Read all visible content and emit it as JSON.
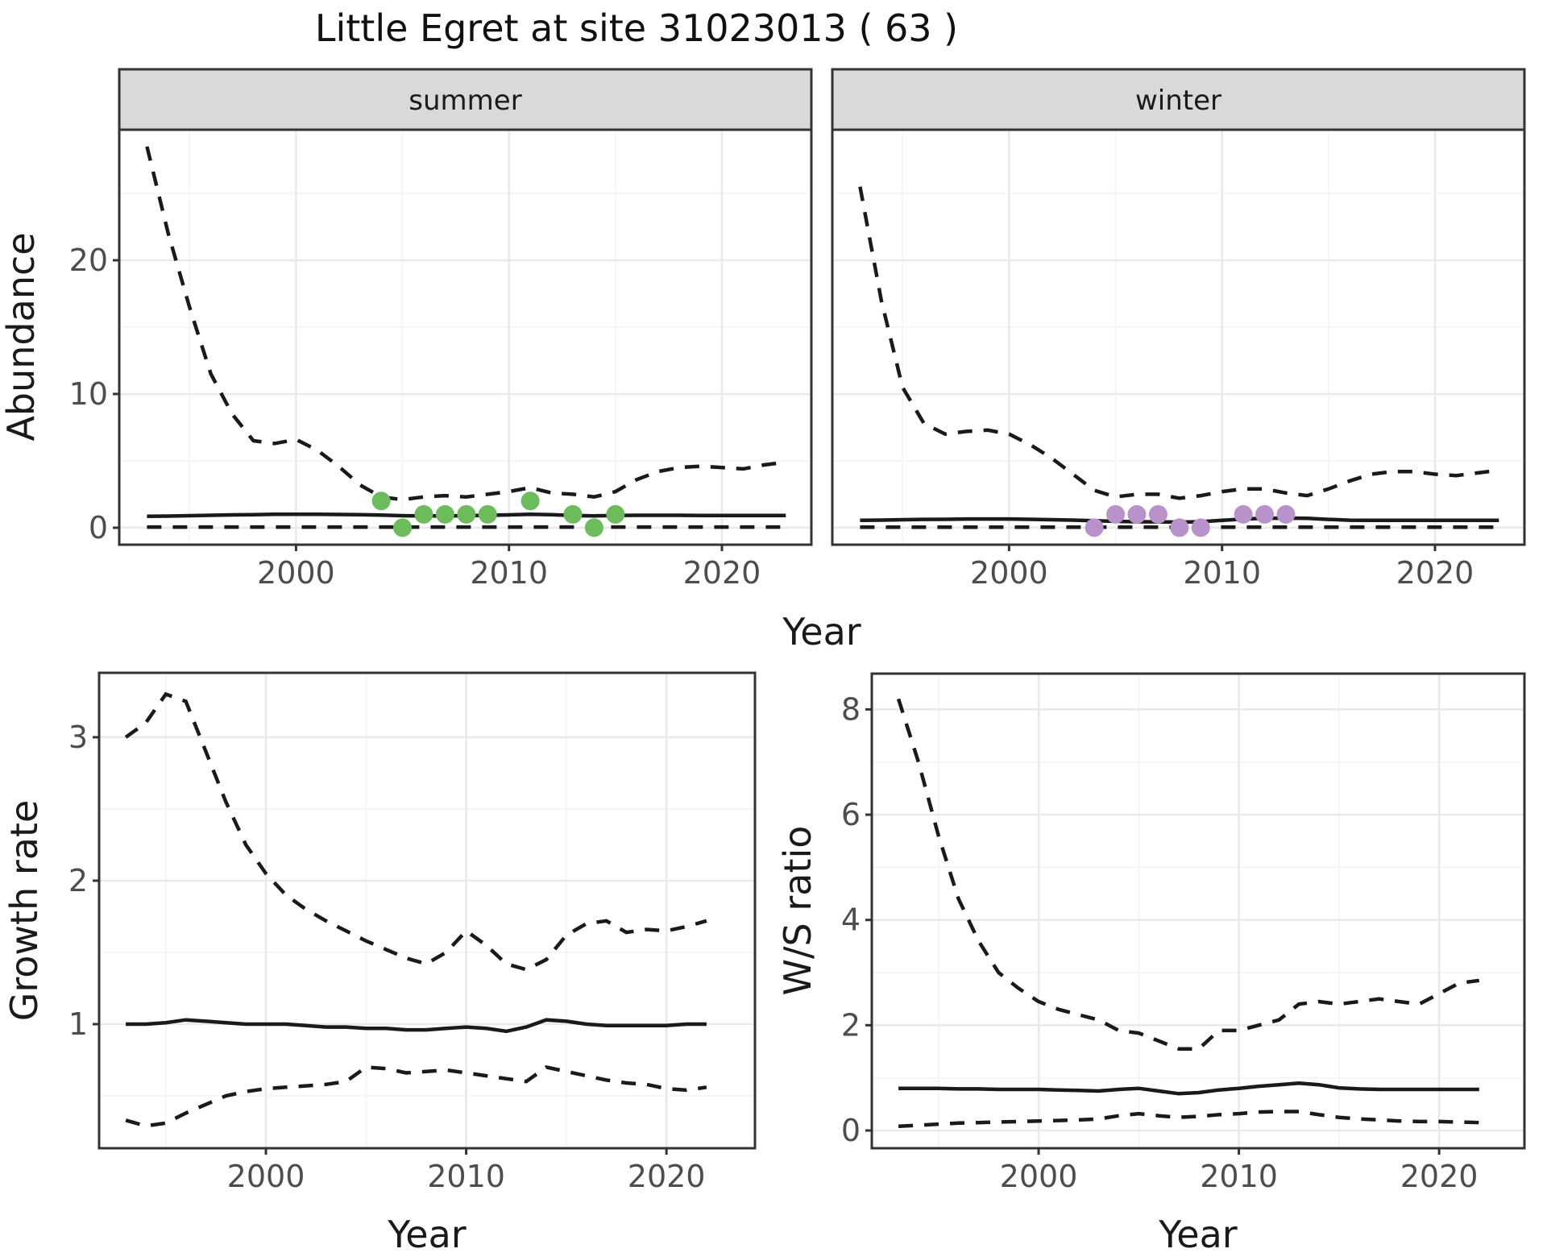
{
  "title": "Little Egret at site 31023013 ( 63 )",
  "colors": {
    "line": "#1a1a1a",
    "grid_major": "#e9e9e9",
    "grid_minor": "#f3f3f3",
    "panel_border": "#333333",
    "strip_bg": "#d9d9d9",
    "axis_text": "#4d4d4d",
    "summer_point": "#6dbc5c",
    "winter_point": "#b992cc",
    "background": "#ffffff"
  },
  "chart_data": [
    {
      "type": "line",
      "xlabel": "Year",
      "ylabel": "Abundance",
      "x": [
        1993,
        1994,
        1995,
        1996,
        1997,
        1998,
        1999,
        2000,
        2001,
        2002,
        2003,
        2004,
        2005,
        2006,
        2007,
        2008,
        2009,
        2010,
        2011,
        2012,
        2013,
        2014,
        2015,
        2016,
        2017,
        2018,
        2019,
        2020,
        2021,
        2022,
        2023
      ],
      "xlim": [
        1991.7,
        2024.2
      ],
      "ylim": [
        -1.27,
        29.76
      ],
      "x_ticks": [
        2000,
        2010,
        2020
      ],
      "x_minor": [
        1995,
        2005,
        2015
      ],
      "y_ticks": [
        0,
        10,
        20
      ],
      "y_minor": [
        5,
        15,
        25
      ],
      "grid": true,
      "legend": "none",
      "facets": [
        {
          "label": "summer",
          "series": [
            {
              "name": "upper-ci",
              "style": "dashed",
              "values": [
                28.5,
                22,
                16.5,
                11.5,
                8.5,
                6.5,
                6.3,
                6.6,
                5.8,
                4.6,
                3.2,
                2.3,
                2.1,
                2.3,
                2.4,
                2.3,
                2.5,
                2.7,
                3.0,
                2.6,
                2.5,
                2.3,
                2.7,
                3.6,
                4.2,
                4.5,
                4.6,
                4.5,
                4.4,
                4.7,
                4.9
              ]
            },
            {
              "name": "fitted",
              "style": "solid",
              "values": [
                0.85,
                0.87,
                0.9,
                0.93,
                0.96,
                0.98,
                1.0,
                1.0,
                1.0,
                0.99,
                0.97,
                0.94,
                0.9,
                0.88,
                0.88,
                0.9,
                0.93,
                0.96,
                1.0,
                0.97,
                0.92,
                0.89,
                0.91,
                0.93,
                0.93,
                0.93,
                0.92,
                0.92,
                0.92,
                0.92,
                0.92
              ]
            },
            {
              "name": "lower-ci",
              "style": "dashed",
              "values": [
                0.05,
                0.05,
                0.05,
                0.05,
                0.05,
                0.05,
                0.05,
                0.05,
                0.05,
                0.05,
                0.05,
                0.05,
                0.05,
                0.05,
                0.05,
                0.05,
                0.05,
                0.05,
                0.05,
                0.05,
                0.05,
                0.05,
                0.05,
                0.05,
                0.05,
                0.05,
                0.05,
                0.05,
                0.05,
                0.05,
                0.05
              ]
            }
          ],
          "points": {
            "color_key": "summer_point",
            "data": [
              [
                2004,
                2
              ],
              [
                2005,
                0
              ],
              [
                2006,
                1
              ],
              [
                2007,
                1
              ],
              [
                2008,
                1
              ],
              [
                2009,
                1
              ],
              [
                2011,
                2
              ],
              [
                2013,
                1
              ],
              [
                2014,
                0
              ],
              [
                2015,
                1
              ]
            ]
          }
        },
        {
          "label": "winter",
          "series": [
            {
              "name": "upper-ci",
              "style": "dashed",
              "values": [
                25.5,
                17,
                10.5,
                7.8,
                7.0,
                7.2,
                7.3,
                7.0,
                6.2,
                5.2,
                4.0,
                2.8,
                2.3,
                2.5,
                2.5,
                2.2,
                2.4,
                2.7,
                2.9,
                2.9,
                2.6,
                2.4,
                2.9,
                3.5,
                4.0,
                4.2,
                4.2,
                4.0,
                3.9,
                4.1,
                4.3
              ]
            },
            {
              "name": "fitted",
              "style": "solid",
              "values": [
                0.55,
                0.57,
                0.6,
                0.62,
                0.63,
                0.65,
                0.65,
                0.65,
                0.63,
                0.6,
                0.57,
                0.52,
                0.48,
                0.45,
                0.44,
                0.42,
                0.45,
                0.55,
                0.65,
                0.7,
                0.72,
                0.7,
                0.62,
                0.56,
                0.55,
                0.55,
                0.55,
                0.55,
                0.55,
                0.55,
                0.55
              ]
            },
            {
              "name": "lower-ci",
              "style": "dashed",
              "values": [
                0.04,
                0.04,
                0.04,
                0.04,
                0.04,
                0.04,
                0.04,
                0.04,
                0.04,
                0.04,
                0.04,
                0.04,
                0.04,
                0.04,
                0.04,
                0.04,
                0.04,
                0.04,
                0.04,
                0.04,
                0.04,
                0.04,
                0.04,
                0.04,
                0.04,
                0.04,
                0.04,
                0.04,
                0.04,
                0.04,
                0.04
              ]
            }
          ],
          "points": {
            "color_key": "winter_point",
            "data": [
              [
                2004,
                0
              ],
              [
                2005,
                1
              ],
              [
                2006,
                1
              ],
              [
                2007,
                1
              ],
              [
                2008,
                0
              ],
              [
                2009,
                0
              ],
              [
                2011,
                1
              ],
              [
                2012,
                1
              ],
              [
                2013,
                1
              ]
            ]
          }
        }
      ]
    },
    {
      "type": "line",
      "xlabel": "Year",
      "ylabel": "Growth rate",
      "x": [
        1993,
        1994,
        1995,
        1996,
        1997,
        1998,
        1999,
        2000,
        2001,
        2002,
        2003,
        2004,
        2005,
        2006,
        2007,
        2008,
        2009,
        2010,
        2011,
        2012,
        2013,
        2014,
        2015,
        2016,
        2017,
        2018,
        2019,
        2020,
        2021,
        2022
      ],
      "xlim": [
        1991.67,
        2024.42
      ],
      "ylim": [
        0.135,
        3.449
      ],
      "x_ticks": [
        2000,
        2010,
        2020
      ],
      "x_minor": [
        1995,
        2005,
        2015
      ],
      "y_ticks": [
        1,
        2,
        3
      ],
      "y_minor": [
        0.5,
        1.5,
        2.5
      ],
      "grid": true,
      "legend": "none",
      "series": [
        {
          "name": "upper-ci",
          "style": "dashed",
          "values": [
            3.0,
            3.1,
            3.3,
            3.25,
            2.9,
            2.55,
            2.25,
            2.05,
            1.9,
            1.8,
            1.72,
            1.65,
            1.58,
            1.52,
            1.46,
            1.42,
            1.5,
            1.65,
            1.55,
            1.42,
            1.38,
            1.45,
            1.62,
            1.7,
            1.72,
            1.64,
            1.66,
            1.65,
            1.68,
            1.72
          ]
        },
        {
          "name": "fitted",
          "style": "solid",
          "values": [
            1.0,
            1.0,
            1.01,
            1.03,
            1.02,
            1.01,
            1.0,
            1.0,
            1.0,
            0.99,
            0.98,
            0.98,
            0.97,
            0.97,
            0.96,
            0.96,
            0.97,
            0.98,
            0.97,
            0.95,
            0.98,
            1.03,
            1.02,
            1.0,
            0.99,
            0.99,
            0.99,
            0.99,
            1.0,
            1.0
          ]
        },
        {
          "name": "lower-ci",
          "style": "dashed",
          "values": [
            0.33,
            0.29,
            0.31,
            0.38,
            0.44,
            0.5,
            0.53,
            0.55,
            0.56,
            0.57,
            0.58,
            0.6,
            0.7,
            0.69,
            0.66,
            0.67,
            0.68,
            0.66,
            0.64,
            0.62,
            0.6,
            0.7,
            0.67,
            0.64,
            0.61,
            0.59,
            0.58,
            0.55,
            0.54,
            0.56
          ]
        }
      ]
    },
    {
      "type": "line",
      "xlabel": "Year",
      "ylabel": "W/S ratio",
      "x": [
        1993,
        1994,
        1995,
        1996,
        1997,
        1998,
        1999,
        2000,
        2001,
        2002,
        2003,
        2004,
        2005,
        2006,
        2007,
        2008,
        2009,
        2010,
        2011,
        2012,
        2013,
        2014,
        2015,
        2016,
        2017,
        2018,
        2019,
        2020,
        2021,
        2022
      ],
      "xlim": [
        1991.67,
        2024.26
      ],
      "ylim": [
        -0.337,
        8.68
      ],
      "x_ticks": [
        2000,
        2010,
        2020
      ],
      "x_minor": [
        1995,
        2005,
        2015
      ],
      "y_ticks": [
        0,
        2,
        4,
        6,
        8
      ],
      "y_minor": [
        1,
        3,
        5,
        7
      ],
      "grid": true,
      "legend": "none",
      "series": [
        {
          "name": "upper-ci",
          "style": "dashed",
          "values": [
            8.2,
            7.0,
            5.6,
            4.4,
            3.6,
            3.0,
            2.7,
            2.45,
            2.3,
            2.2,
            2.1,
            1.9,
            1.85,
            1.7,
            1.55,
            1.55,
            1.9,
            1.9,
            2.0,
            2.1,
            2.4,
            2.45,
            2.4,
            2.45,
            2.5,
            2.45,
            2.4,
            2.6,
            2.8,
            2.85
          ]
        },
        {
          "name": "fitted",
          "style": "solid",
          "values": [
            0.8,
            0.8,
            0.8,
            0.79,
            0.79,
            0.78,
            0.78,
            0.78,
            0.77,
            0.76,
            0.75,
            0.78,
            0.8,
            0.75,
            0.7,
            0.72,
            0.77,
            0.8,
            0.84,
            0.87,
            0.9,
            0.87,
            0.81,
            0.79,
            0.78,
            0.78,
            0.78,
            0.78,
            0.78,
            0.78
          ]
        },
        {
          "name": "lower-ci",
          "style": "dashed",
          "values": [
            0.08,
            0.1,
            0.12,
            0.14,
            0.15,
            0.16,
            0.17,
            0.18,
            0.19,
            0.2,
            0.22,
            0.28,
            0.32,
            0.28,
            0.25,
            0.27,
            0.3,
            0.32,
            0.35,
            0.36,
            0.36,
            0.3,
            0.25,
            0.22,
            0.2,
            0.18,
            0.17,
            0.17,
            0.16,
            0.15
          ]
        }
      ]
    }
  ]
}
